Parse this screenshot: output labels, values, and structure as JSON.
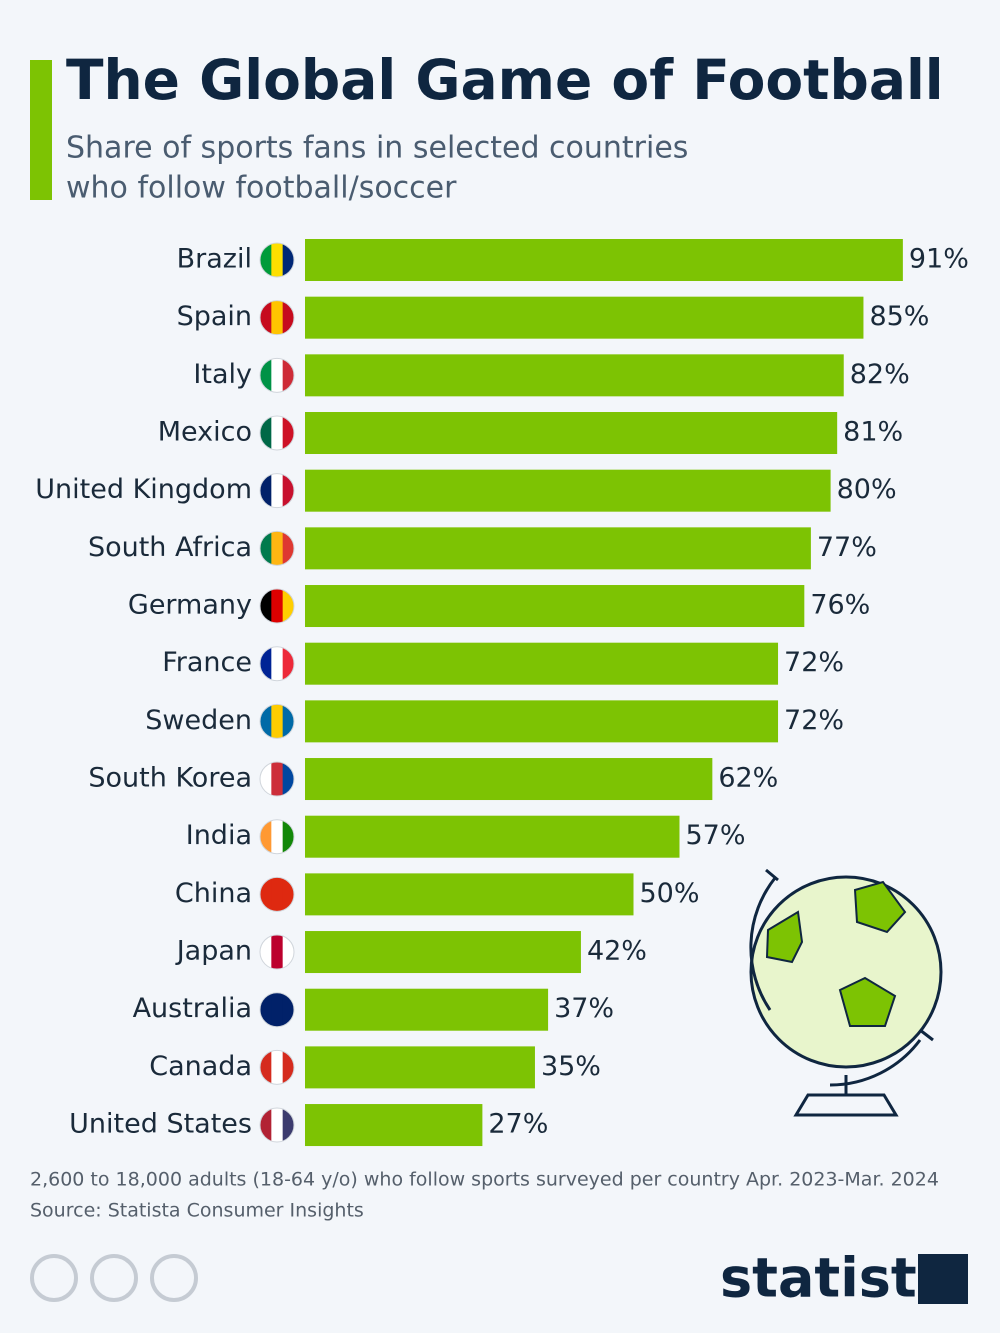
{
  "chart_data": {
    "type": "bar",
    "orientation": "horizontal",
    "title": "The Global Game of Football",
    "subtitle": [
      "Share of sports fans in selected countries",
      "who follow football/soccer"
    ],
    "categories": [
      "Brazil",
      "Spain",
      "Italy",
      "Mexico",
      "United Kingdom",
      "South Africa",
      "Germany",
      "France",
      "Sweden",
      "South Korea",
      "India",
      "China",
      "Japan",
      "Australia",
      "Canada",
      "United States"
    ],
    "values": [
      91,
      85,
      82,
      81,
      80,
      77,
      76,
      72,
      72,
      62,
      57,
      50,
      42,
      37,
      35,
      27
    ],
    "value_labels": [
      "91%",
      "85%",
      "82%",
      "81%",
      "80%",
      "77%",
      "76%",
      "72%",
      "72%",
      "62%",
      "57%",
      "50%",
      "42%",
      "37%",
      "35%",
      "27%"
    ],
    "color": "#7dc303",
    "note": "2,600 to 18,000 adults (18-64 y/o) who follow sports surveyed per country Apr. 2023-Mar. 2024",
    "source": "Source: Statista Consumer Insights",
    "brand": "statista"
  }
}
